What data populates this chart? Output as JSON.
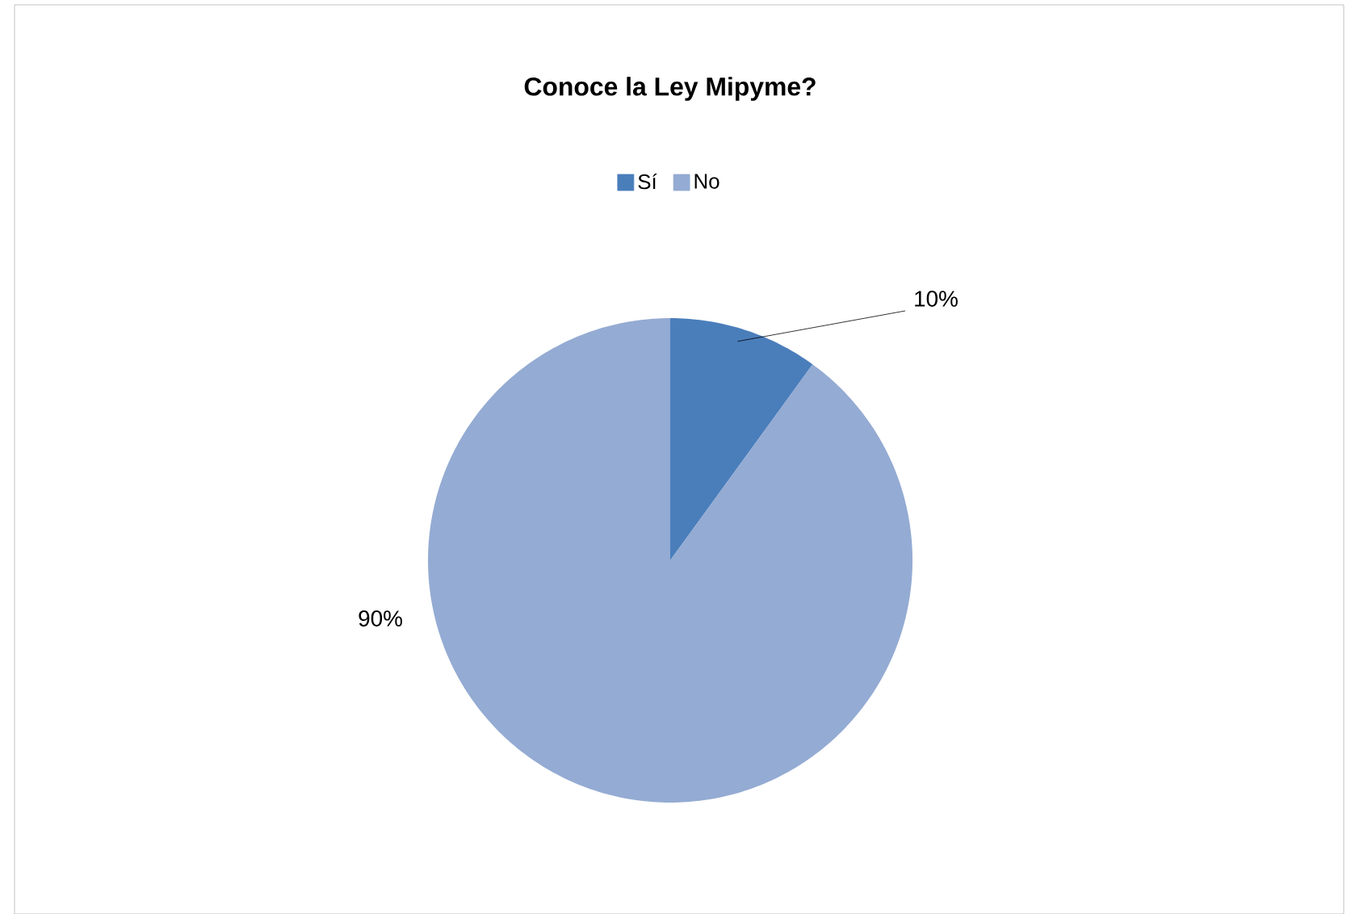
{
  "chart_data": {
    "type": "pie",
    "title": "Conoce la Ley Mipyme?",
    "categories": [
      "Sí",
      "No"
    ],
    "values": [
      10,
      90
    ],
    "colors": [
      "#4a7ebb",
      "#94abd3"
    ],
    "value_labels": [
      "10%",
      "90%"
    ],
    "legend": "top"
  }
}
